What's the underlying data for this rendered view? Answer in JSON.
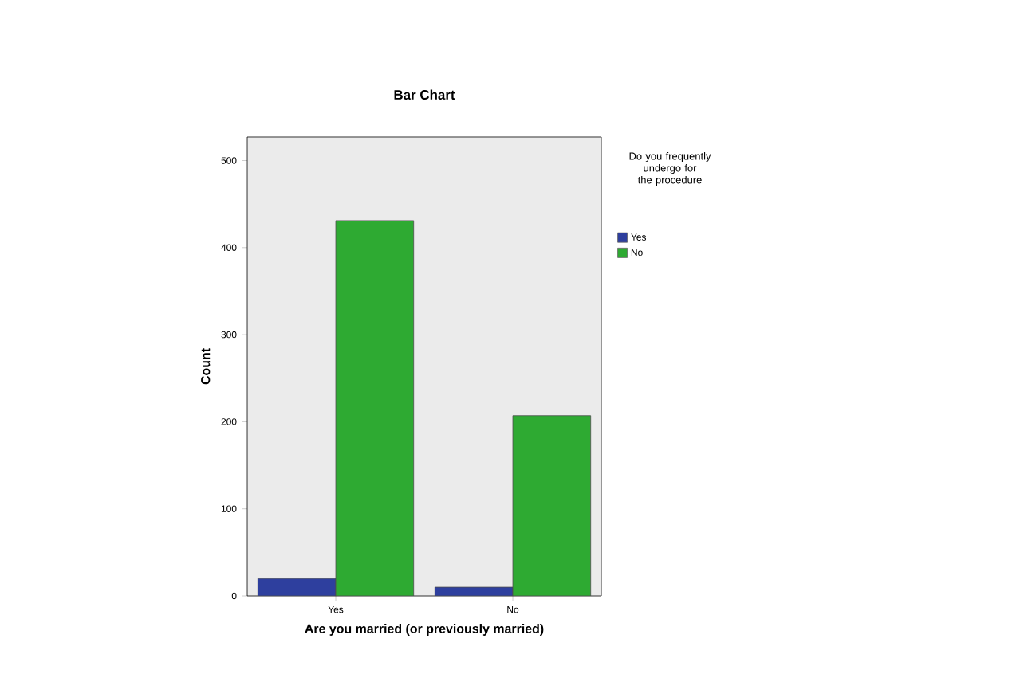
{
  "chart_data": {
    "type": "bar",
    "title": "Bar Chart",
    "xlabel": "Are you married (or previously married)",
    "ylabel": "Count",
    "legend_title": "Do you frequently undergo for the procedure",
    "categories": [
      "Yes",
      "No"
    ],
    "series": [
      {
        "name": "Yes",
        "color": "#2e3f9e",
        "values": [
          20,
          10
        ]
      },
      {
        "name": "No",
        "color": "#2eaa32",
        "values": [
          431,
          207
        ]
      }
    ],
    "ylim": [
      0,
      527
    ],
    "yticks": [
      0,
      100,
      200,
      300,
      400,
      500
    ],
    "grid": false,
    "legend": "top right"
  }
}
